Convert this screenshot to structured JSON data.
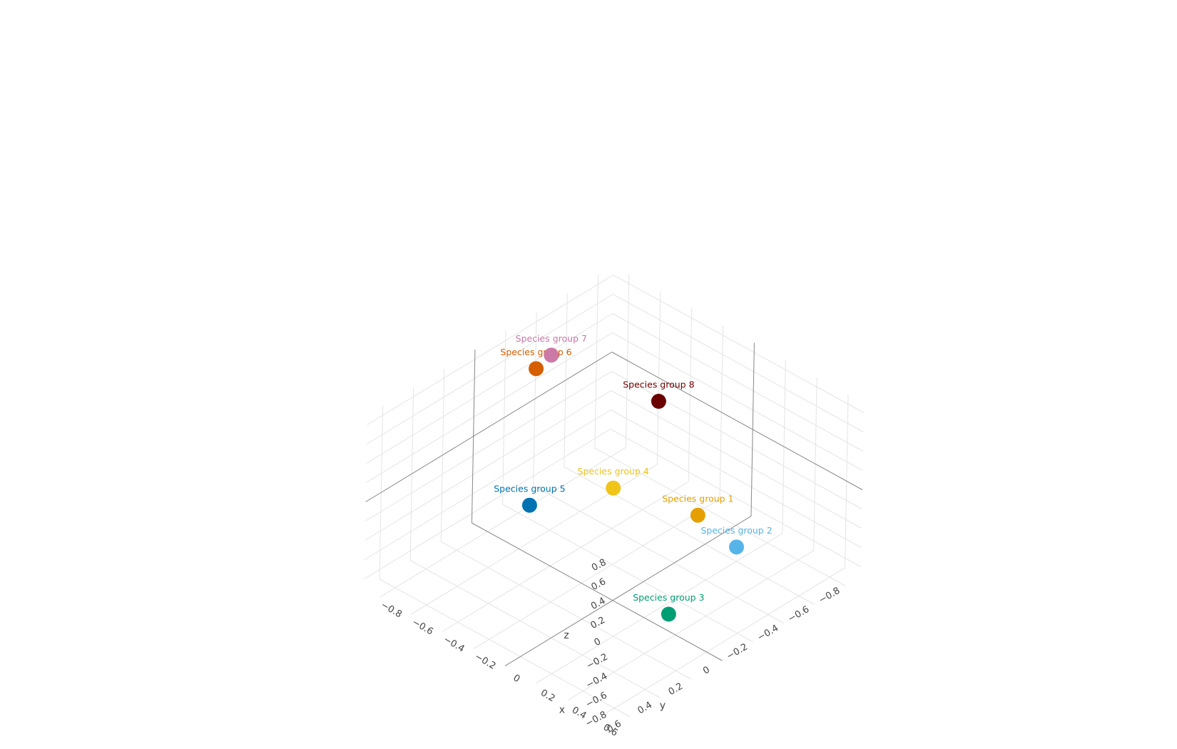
{
  "chart_data": {
    "type": "scatter",
    "subtype": "3d",
    "title": "",
    "axes": {
      "x": {
        "title": "x",
        "range": [
          -0.9,
          0.7
        ],
        "ticks": [
          {
            "v": -0.8,
            "label": "−0.8"
          },
          {
            "v": -0.6,
            "label": "−0.6"
          },
          {
            "v": -0.4,
            "label": "−0.4"
          },
          {
            "v": -0.2,
            "label": "−0.2"
          },
          {
            "v": 0,
            "label": "0"
          },
          {
            "v": 0.2,
            "label": "0.2"
          },
          {
            "v": 0.4,
            "label": "0.4"
          },
          {
            "v": 0.6,
            "label": "0.6"
          }
        ]
      },
      "y": {
        "title": "y",
        "range": [
          -0.9,
          0.7
        ],
        "ticks": [
          {
            "v": -0.8,
            "label": "−0.8"
          },
          {
            "v": -0.6,
            "label": "−0.6"
          },
          {
            "v": -0.4,
            "label": "−0.4"
          },
          {
            "v": -0.2,
            "label": "−0.2"
          },
          {
            "v": 0,
            "label": "0"
          },
          {
            "v": 0.2,
            "label": "0.2"
          },
          {
            "v": 0.4,
            "label": "0.4"
          },
          {
            "v": 0.6,
            "label": "0.6"
          }
        ]
      },
      "z": {
        "title": "z",
        "range": [
          -0.9,
          0.9
        ],
        "ticks": [
          {
            "v": -0.8,
            "label": "−0.8"
          },
          {
            "v": -0.6,
            "label": "−0.6"
          },
          {
            "v": -0.4,
            "label": "−0.4"
          },
          {
            "v": -0.2,
            "label": "−0.2"
          },
          {
            "v": 0,
            "label": "0"
          },
          {
            "v": 0.2,
            "label": "0.2"
          },
          {
            "v": 0.4,
            "label": "0.4"
          },
          {
            "v": 0.6,
            "label": "0.6"
          },
          {
            "v": 0.8,
            "label": "0.8"
          }
        ]
      }
    },
    "grid": true,
    "legend": "none",
    "points": [
      {
        "name": "Species group 1",
        "x": 0.0,
        "y": -0.55,
        "z": -0.55,
        "color": "#E69F00"
      },
      {
        "name": "Species group 2",
        "x": 0.2,
        "y": -0.6,
        "z": -0.75,
        "color": "#56B4E9"
      },
      {
        "name": "Species group 3",
        "x": 0.5,
        "y": 0.15,
        "z": -0.45,
        "color": "#009E73"
      },
      {
        "name": "Species group 4",
        "x": -0.25,
        "y": -0.25,
        "z": -0.2,
        "color": "#F0C419"
      },
      {
        "name": "Species group 5",
        "x": -0.2,
        "y": 0.35,
        "z": 0.25,
        "color": "#0072B2"
      },
      {
        "name": "Species group 6",
        "x": -0.8,
        "y": -0.3,
        "z": 0.5,
        "color": "#D55E00"
      },
      {
        "name": "Species group 7",
        "x": -0.85,
        "y": -0.45,
        "z": 0.45,
        "color": "#CC79A7"
      },
      {
        "name": "Species group 8",
        "x": -0.55,
        "y": -0.85,
        "z": -0.15,
        "color": "#6B0000"
      }
    ]
  }
}
